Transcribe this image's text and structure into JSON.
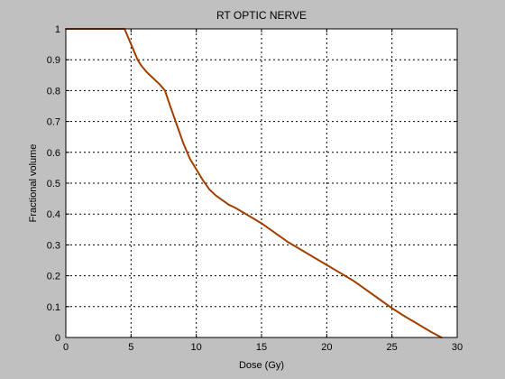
{
  "chart_data": {
    "type": "line",
    "title": "RT OPTIC NERVE",
    "xlabel": "Dose (Gy)",
    "ylabel": "Fractional volume",
    "xlim": [
      0,
      30
    ],
    "ylim": [
      0,
      1
    ],
    "xticks": [
      0,
      5,
      10,
      15,
      20,
      25,
      30
    ],
    "yticks": [
      0,
      0.1,
      0.2,
      0.3,
      0.4,
      0.5,
      0.6,
      0.7,
      0.8,
      0.9,
      1
    ],
    "grid": true,
    "grid_style": "dotted",
    "series": [
      {
        "color": "#a04000",
        "x": [
          0,
          4.5,
          4.8,
          5.2,
          5.5,
          5.8,
          6.2,
          6.7,
          7.2,
          7.6,
          8.0,
          8.5,
          9.0,
          9.5,
          10.0,
          10.5,
          11.0,
          11.5,
          12.0,
          12.5,
          13.0,
          14.0,
          15.0,
          16.0,
          17.0,
          18.0,
          19.0,
          20.0,
          21.0,
          22.0,
          23.0,
          24.0,
          25.0,
          26.0,
          27.0,
          28.0,
          28.8
        ],
        "y": [
          1.0,
          1.0,
          0.97,
          0.93,
          0.9,
          0.88,
          0.86,
          0.84,
          0.82,
          0.8,
          0.75,
          0.69,
          0.63,
          0.58,
          0.545,
          0.51,
          0.48,
          0.46,
          0.445,
          0.43,
          0.42,
          0.395,
          0.37,
          0.34,
          0.31,
          0.285,
          0.26,
          0.235,
          0.21,
          0.185,
          0.155,
          0.125,
          0.095,
          0.068,
          0.043,
          0.018,
          0.0
        ]
      }
    ]
  }
}
